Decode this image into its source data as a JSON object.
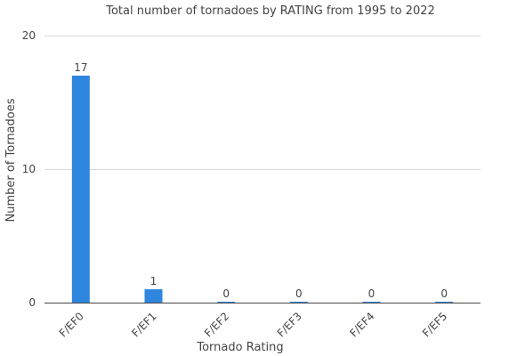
{
  "chart_data": {
    "type": "bar",
    "title": "Total number of tornadoes by RATING from 1995 to 2022",
    "xlabel": "Tornado Rating",
    "ylabel": "Number of Tornadoes",
    "categories": [
      "F/EF0",
      "F/EF1",
      "F/EF2",
      "F/EF3",
      "F/EF4",
      "F/EF5"
    ],
    "values": [
      17,
      1,
      0,
      0,
      0,
      0
    ],
    "data_labels": [
      "17",
      "1",
      "0",
      "0",
      "0",
      "0"
    ],
    "ylim": [
      0,
      20
    ],
    "yticks": [
      0,
      10,
      20
    ],
    "ytick_labels": [
      "0",
      "10",
      "20"
    ],
    "grid": true,
    "bar_color": "#2f86df",
    "legend": "none"
  }
}
